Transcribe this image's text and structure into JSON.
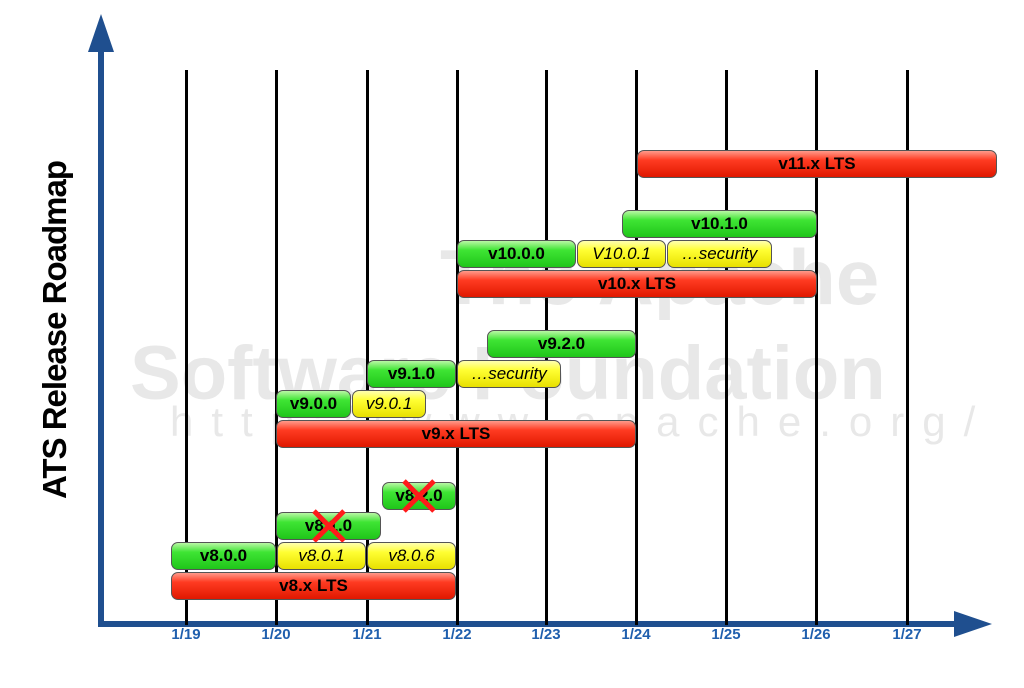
{
  "title": "ATS Release Roadmap",
  "watermark": {
    "line1": "The Apache",
    "line2": "Software Foundation",
    "line3": "http://www.apache.org/"
  },
  "x_ticks": [
    "1/19",
    "1/20",
    "1/21",
    "1/22",
    "1/23",
    "1/24",
    "1/25",
    "1/26",
    "1/27"
  ],
  "bars": [
    {
      "label": "v11.x LTS",
      "kind": "lts"
    },
    {
      "label": "v10.1.0",
      "kind": "feature"
    },
    {
      "label": "v10.0.0",
      "kind": "feature"
    },
    {
      "label": "V10.0.1",
      "kind": "patch"
    },
    {
      "label": "…security",
      "kind": "patch"
    },
    {
      "label": "v10.x LTS",
      "kind": "lts"
    },
    {
      "label": "v9.2.0",
      "kind": "feature"
    },
    {
      "label": "v9.1.0",
      "kind": "feature"
    },
    {
      "label": "…security",
      "kind": "patch"
    },
    {
      "label": "v9.0.0",
      "kind": "feature"
    },
    {
      "label": "v9.0.1",
      "kind": "patch"
    },
    {
      "label": "v9.x LTS",
      "kind": "lts"
    },
    {
      "label": "v8.2.0",
      "kind": "feature",
      "cancelled": true
    },
    {
      "label": "v8.1.0",
      "kind": "feature",
      "cancelled": true
    },
    {
      "label": "v8.0.0",
      "kind": "feature"
    },
    {
      "label": "v8.0.1",
      "kind": "patch"
    },
    {
      "label": "v8.0.6",
      "kind": "patch"
    },
    {
      "label": "v8.x LTS",
      "kind": "lts"
    }
  ],
  "colors": {
    "lts": "#e01800",
    "feature": "#1fc51a",
    "patch": "#ffff33",
    "axis": "#1f4f8f",
    "cancel": "#ff0000"
  }
}
